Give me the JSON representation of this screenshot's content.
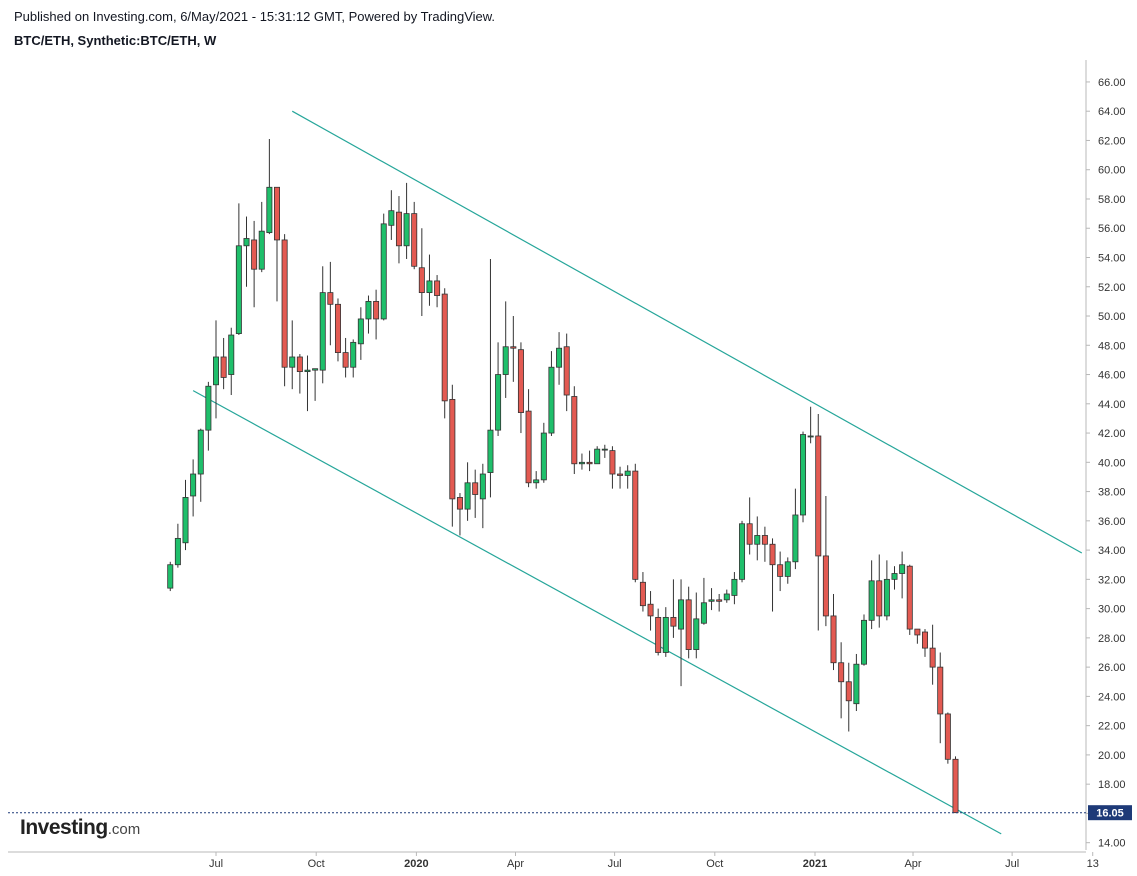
{
  "header": {
    "published": "Published on Investing.com, 6/May/2021 - 15:31:12 GMT, Powered by TradingView.",
    "symbol": "BTC/ETH, Synthetic:BTC/ETH, W"
  },
  "logo": {
    "main": "Investing",
    "suffix": ".com"
  },
  "colors": {
    "up": "#26a69a",
    "up_fill": "#1fbf6b",
    "down": "#ef5350",
    "down_fill": "#e35a52",
    "trendline": "#26a69a",
    "price_tag": "#1e3a78"
  },
  "chart_data": {
    "type": "candlestick",
    "ylim": [
      13.5,
      67.5
    ],
    "y_ticks": [
      "66.00",
      "64.00",
      "62.00",
      "60.00",
      "58.00",
      "56.00",
      "54.00",
      "52.00",
      "50.00",
      "48.00",
      "46.00",
      "44.00",
      "42.00",
      "40.00",
      "38.00",
      "36.00",
      "34.00",
      "32.00",
      "30.00",
      "28.00",
      "26.00",
      "24.00",
      "22.00",
      "20.00",
      "18.00",
      "16.00",
      "14.00"
    ],
    "x_ticks": [
      {
        "label": "Jul",
        "date": "2019-07-01",
        "bold": false
      },
      {
        "label": "Oct",
        "date": "2019-10-01",
        "bold": false
      },
      {
        "label": "2020",
        "date": "2020-01-01",
        "bold": true
      },
      {
        "label": "Apr",
        "date": "2020-04-01",
        "bold": false
      },
      {
        "label": "Jul",
        "date": "2020-07-01",
        "bold": false
      },
      {
        "label": "Oct",
        "date": "2020-10-01",
        "bold": false
      },
      {
        "label": "2021",
        "date": "2021-01-01",
        "bold": true
      },
      {
        "label": "Apr",
        "date": "2021-04-01",
        "bold": false
      },
      {
        "label": "Jul",
        "date": "2021-07-01",
        "bold": false
      },
      {
        "label": "13",
        "date": "2021-09-13",
        "bold": false
      }
    ],
    "first_week": "2019-05-20",
    "candles": [
      [
        31.4,
        33.0,
        31.2,
        33.2
      ],
      [
        33.0,
        34.8,
        32.8,
        35.8
      ],
      [
        34.5,
        37.6,
        34.0,
        38.8
      ],
      [
        37.7,
        39.2,
        36.3,
        40.2
      ],
      [
        39.2,
        42.2,
        37.3,
        42.3
      ],
      [
        42.2,
        45.2,
        40.8,
        45.5
      ],
      [
        45.3,
        47.2,
        43.0,
        49.7
      ],
      [
        47.2,
        45.8,
        45.0,
        48.5
      ],
      [
        46.0,
        48.7,
        44.6,
        49.2
      ],
      [
        48.8,
        54.8,
        48.7,
        57.7
      ],
      [
        54.8,
        55.3,
        52.0,
        56.8
      ],
      [
        55.2,
        53.2,
        50.6,
        56.5
      ],
      [
        53.2,
        55.8,
        53.0,
        57.8
      ],
      [
        55.7,
        58.8,
        55.6,
        62.1
      ],
      [
        58.8,
        55.2,
        51.0,
        58.6
      ],
      [
        55.2,
        46.5,
        45.2,
        55.6
      ],
      [
        46.5,
        47.2,
        45.0,
        49.7
      ],
      [
        47.2,
        46.2,
        44.7,
        47.4
      ],
      [
        46.2,
        46.3,
        43.5,
        47.3
      ],
      [
        46.3,
        46.4,
        44.2,
        46.4
      ],
      [
        46.3,
        51.6,
        45.4,
        53.4
      ],
      [
        51.6,
        50.8,
        48.0,
        53.7
      ],
      [
        50.8,
        47.5,
        46.9,
        51.2
      ],
      [
        47.5,
        46.5,
        45.8,
        48.5
      ],
      [
        46.5,
        48.2,
        45.8,
        48.4
      ],
      [
        48.1,
        49.8,
        47.0,
        50.6
      ],
      [
        49.8,
        51.0,
        48.8,
        51.4
      ],
      [
        51.0,
        49.8,
        48.4,
        51.8
      ],
      [
        49.8,
        56.3,
        49.7,
        57.0
      ],
      [
        56.2,
        57.2,
        55.2,
        58.6
      ],
      [
        57.1,
        54.8,
        53.6,
        58.2
      ],
      [
        54.8,
        57.0,
        53.9,
        59.1
      ],
      [
        57.0,
        53.4,
        53.2,
        57.8
      ],
      [
        53.3,
        51.6,
        50.0,
        56.0
      ],
      [
        51.6,
        52.4,
        50.7,
        54.2
      ],
      [
        52.4,
        51.4,
        50.6,
        52.8
      ],
      [
        51.5,
        44.2,
        43.0,
        51.9
      ],
      [
        44.3,
        37.5,
        35.6,
        45.3
      ],
      [
        37.6,
        36.8,
        35.0,
        37.9
      ],
      [
        36.8,
        38.6,
        36.0,
        40.0
      ],
      [
        38.6,
        37.8,
        36.2,
        39.5
      ],
      [
        37.5,
        39.2,
        35.5,
        39.9
      ],
      [
        39.3,
        42.2,
        37.6,
        53.9
      ],
      [
        42.2,
        46.0,
        41.8,
        48.2
      ],
      [
        46.0,
        47.9,
        44.4,
        51.0
      ],
      [
        47.9,
        47.8,
        45.5,
        50.0
      ],
      [
        47.7,
        43.4,
        42.0,
        48.2
      ],
      [
        43.5,
        38.6,
        38.3,
        45.0
      ],
      [
        38.6,
        38.8,
        38.2,
        39.4
      ],
      [
        38.8,
        42.0,
        38.6,
        42.7
      ],
      [
        42.0,
        46.5,
        41.8,
        47.6
      ],
      [
        46.5,
        47.8,
        45.3,
        48.9
      ],
      [
        47.9,
        44.6,
        43.5,
        48.8
      ],
      [
        44.5,
        39.9,
        39.2,
        45.2
      ],
      [
        39.9,
        40.0,
        39.5,
        40.6
      ],
      [
        40.0,
        39.9,
        39.4,
        40.8
      ],
      [
        39.9,
        40.9,
        39.9,
        41.1
      ],
      [
        40.9,
        40.9,
        40.3,
        41.2
      ],
      [
        40.8,
        39.2,
        38.2,
        41.1
      ],
      [
        39.2,
        39.1,
        38.2,
        39.7
      ],
      [
        39.1,
        39.4,
        38.2,
        39.8
      ],
      [
        39.4,
        32.0,
        31.8,
        39.9
      ],
      [
        31.8,
        30.2,
        29.8,
        32.5
      ],
      [
        30.3,
        29.5,
        28.5,
        31.2
      ],
      [
        29.4,
        27.0,
        26.8,
        30.0
      ],
      [
        27.0,
        29.4,
        26.7,
        30.1
      ],
      [
        29.4,
        28.8,
        28.0,
        32.0
      ],
      [
        28.6,
        30.6,
        24.7,
        32.0
      ],
      [
        30.6,
        27.2,
        26.6,
        31.5
      ],
      [
        27.2,
        29.3,
        26.6,
        31.1
      ],
      [
        29.0,
        30.4,
        28.9,
        32.1
      ],
      [
        30.5,
        30.6,
        29.9,
        31.4
      ],
      [
        30.6,
        30.5,
        29.8,
        31.0
      ],
      [
        30.6,
        31.0,
        30.4,
        31.3
      ],
      [
        30.9,
        32.0,
        30.3,
        32.5
      ],
      [
        32.0,
        35.8,
        31.8,
        36.0
      ],
      [
        35.8,
        34.4,
        33.7,
        37.6
      ],
      [
        34.4,
        35.0,
        33.3,
        36.3
      ],
      [
        35.0,
        34.4,
        33.2,
        35.6
      ],
      [
        34.4,
        33.0,
        29.8,
        34.8
      ],
      [
        33.0,
        32.2,
        31.2,
        33.9
      ],
      [
        32.2,
        33.2,
        31.7,
        33.5
      ],
      [
        33.2,
        36.4,
        32.7,
        38.2
      ],
      [
        36.4,
        41.9,
        35.9,
        42.1
      ],
      [
        41.8,
        41.8,
        41.3,
        43.8
      ],
      [
        41.8,
        33.6,
        28.5,
        43.3
      ],
      [
        33.6,
        29.5,
        28.8,
        37.7
      ],
      [
        29.5,
        26.3,
        25.8,
        31.0
      ],
      [
        26.3,
        25.0,
        22.5,
        27.7
      ],
      [
        25.0,
        23.7,
        21.6,
        26.3
      ],
      [
        23.5,
        26.2,
        23.0,
        26.9
      ],
      [
        26.2,
        29.2,
        26.1,
        29.6
      ],
      [
        29.2,
        31.9,
        28.6,
        33.3
      ],
      [
        31.9,
        29.5,
        28.7,
        33.7
      ],
      [
        29.5,
        32.0,
        29.2,
        33.3
      ],
      [
        32.0,
        32.4,
        31.3,
        32.9
      ],
      [
        32.4,
        33.0,
        30.7,
        33.9
      ],
      [
        32.9,
        28.6,
        28.2,
        33.0
      ],
      [
        28.6,
        28.2,
        27.6,
        28.6
      ],
      [
        28.4,
        27.3,
        26.7,
        28.6
      ],
      [
        27.3,
        26.0,
        24.8,
        28.9
      ],
      [
        26.0,
        22.8,
        20.8,
        27.0
      ],
      [
        22.8,
        19.7,
        19.4,
        22.9
      ],
      [
        19.7,
        16.05,
        16.05,
        19.9
      ]
    ],
    "trendlines": [
      {
        "name": "upper",
        "start": [
          "2019-09-09",
          64.0
        ],
        "end": [
          "2021-09-03",
          33.8
        ]
      },
      {
        "name": "lower",
        "start": [
          "2019-06-10",
          44.9
        ],
        "end": [
          "2021-06-21",
          14.6
        ]
      }
    ],
    "last_price": "16.05"
  }
}
